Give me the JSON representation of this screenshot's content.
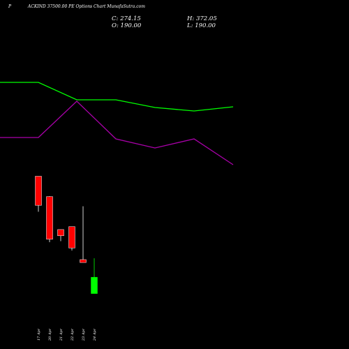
{
  "header": {
    "prefix": "P",
    "title": "ACKIND 37500.00 PE Options  Chart MunafaSutra.com"
  },
  "ohlc": {
    "c_label": "C:",
    "c_value": "274.15",
    "h_label": "H:",
    "h_value": "372.05",
    "o_label": "O:",
    "o_value": "190.00",
    "l_label": "L:",
    "l_value": "190.00"
  },
  "colors": {
    "background": "#000000",
    "bear": "#ff0000",
    "bull": "#00ff00",
    "upper_line": "#00ff00",
    "lower_line": "#aa00aa"
  },
  "chart_data": {
    "type": "candlestick",
    "categories": [
      "17 Apr",
      "20 Apr",
      "21 Apr",
      "22 Apr",
      "23 Apr",
      "24 Apr"
    ],
    "candles": [
      {
        "open": 795,
        "high": 795,
        "low": 612,
        "close": 645,
        "color": "bear"
      },
      {
        "open": 690,
        "high": 692,
        "low": 455,
        "close": 470,
        "color": "bear"
      },
      {
        "open": 520,
        "high": 520,
        "low": 460,
        "close": 488,
        "color": "bear"
      },
      {
        "open": 535,
        "high": 535,
        "low": 412,
        "close": 425,
        "color": "bear"
      },
      {
        "open": 365,
        "high": 640,
        "low": 355,
        "close": 350,
        "color": "bear"
      },
      {
        "open": 190,
        "high": 372.05,
        "low": 190,
        "close": 274.15,
        "color": "bull"
      }
    ],
    "ylim": [
      120,
      840
    ],
    "overlays": [
      {
        "color": "upper_line",
        "points": [
          {
            "x": 0,
            "y": 118
          },
          {
            "x": 55,
            "y": 118
          },
          {
            "x": 110,
            "y": 143
          },
          {
            "x": 166,
            "y": 143
          },
          {
            "x": 222,
            "y": 154
          },
          {
            "x": 278,
            "y": 159
          },
          {
            "x": 334,
            "y": 153
          }
        ]
      },
      {
        "color": "lower_line",
        "points": [
          {
            "x": 0,
            "y": 197
          },
          {
            "x": 55,
            "y": 197
          },
          {
            "x": 110,
            "y": 145
          },
          {
            "x": 166,
            "y": 199
          },
          {
            "x": 222,
            "y": 212
          },
          {
            "x": 278,
            "y": 199
          },
          {
            "x": 334,
            "y": 236
          }
        ]
      }
    ]
  }
}
